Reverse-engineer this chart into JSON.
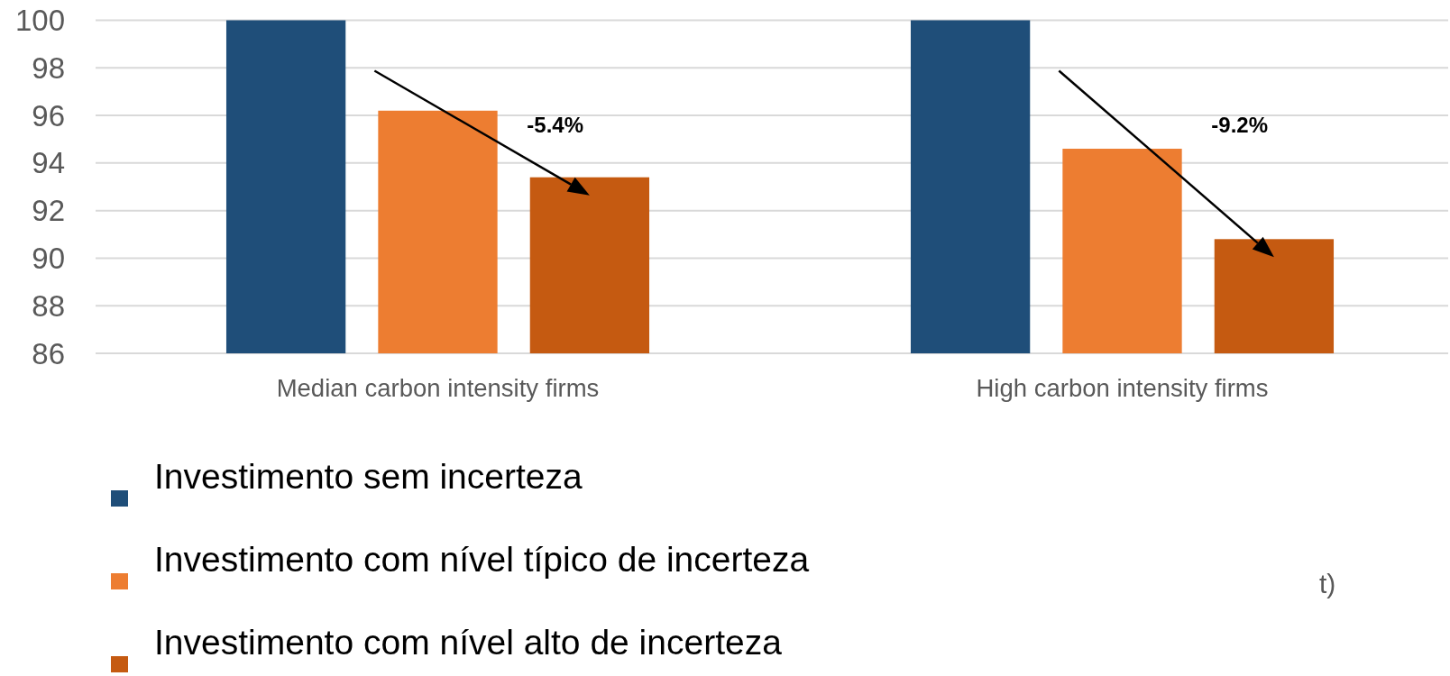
{
  "chart_data": {
    "type": "bar",
    "categories": [
      "Median carbon intensity firms",
      "High carbon intensity firms"
    ],
    "series": [
      {
        "name": "Investimento sem incerteza",
        "color": "#1f4e79",
        "values": [
          100,
          100
        ]
      },
      {
        "name": "Investimento com nível típico de incerteza",
        "color": "#ed7d31",
        "values": [
          96.2,
          94.6
        ]
      },
      {
        "name": "Investimento com nível alto de incerteza",
        "color": "#c55a11",
        "values": [
          93.4,
          90.8
        ]
      }
    ],
    "ylim": [
      86,
      100
    ],
    "yticks": [
      86,
      88,
      90,
      92,
      94,
      96,
      98,
      100
    ],
    "grid": "y",
    "legend": "bottom",
    "annotations": [
      "-5.4%",
      "-9.2%",
      "t)"
    ]
  }
}
